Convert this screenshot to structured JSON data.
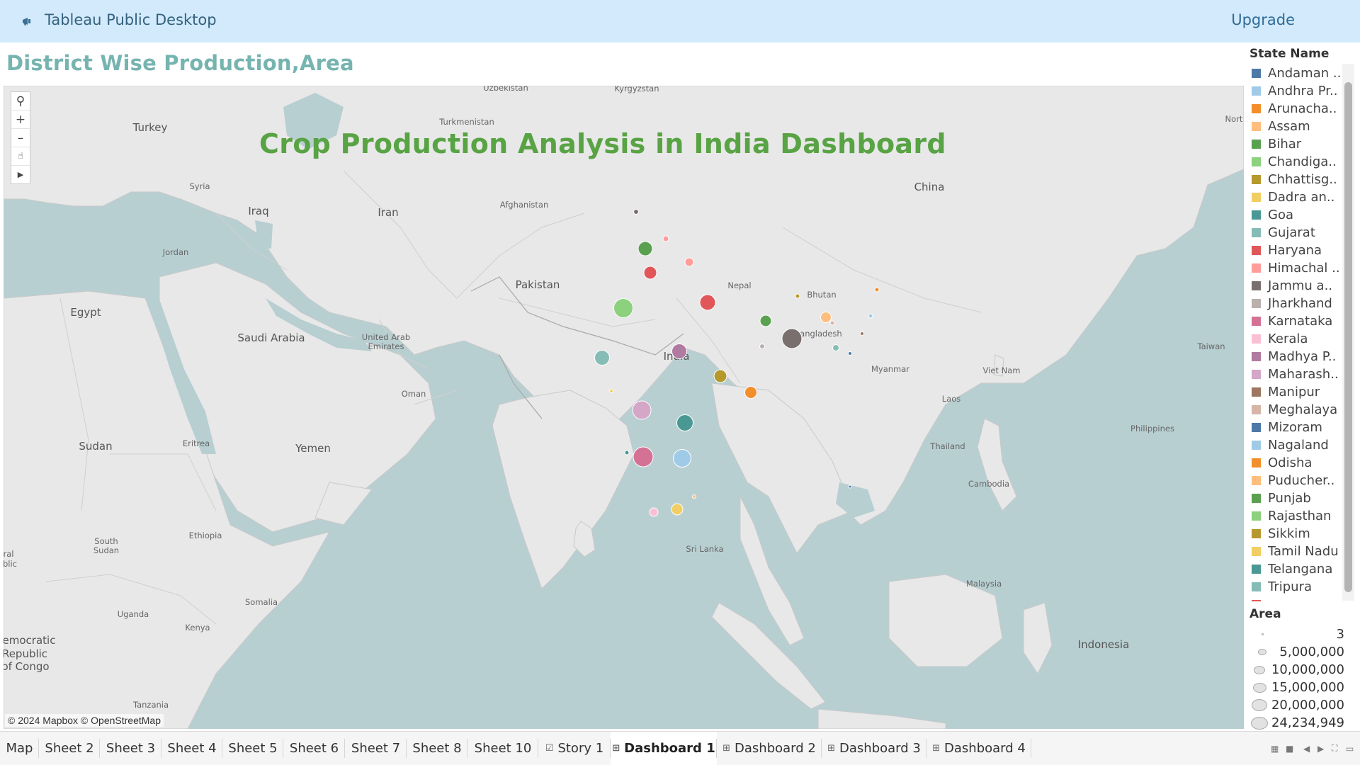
{
  "header": {
    "app_title": "Tableau Public Desktop",
    "upgrade_label": "Upgrade"
  },
  "sheet": {
    "title": "District Wise Production,Area",
    "dashboard_title": "Crop Production Analysis in India Dashboard"
  },
  "map": {
    "attribution": "© 2024 Mapbox © OpenStreetMap",
    "controls": [
      "search-icon",
      "zoom-in-icon",
      "zoom-out-icon",
      "lasso-select-icon",
      "expand-toolbar-icon"
    ],
    "labels": {
      "uzbekistan": "Uzbekistan",
      "kyrgyzstan": "Kyrgyzstan",
      "turkey": "Turkey",
      "turkmenistan": "Turkmenistan",
      "syria": "Syria",
      "iraq": "Iraq",
      "iran": "Iran",
      "afghanistan": "Afghanistan",
      "china": "China",
      "jordan": "Jordan",
      "pakistan": "Pakistan",
      "nepal": "Nepal",
      "bhutan": "Bhutan",
      "egypt": "Egypt",
      "saudi_arabia": "Saudi Arabia",
      "uae": "United Arab Emirates",
      "bangladesh": "Bangladesh",
      "india": "India",
      "myanmar": "Myanmar",
      "taiwan": "Taiwan",
      "oman": "Oman",
      "laos": "Laos",
      "viet_nam": "Viet Nam",
      "philippines": "Philippines",
      "sudan": "Sudan",
      "eritrea": "Eritrea",
      "yemen": "Yemen",
      "thailand": "Thailand",
      "cambodia": "Cambodia",
      "south_sudan": "South Sudan",
      "ethiopia": "Ethiopia",
      "sri_lanka": "Sri Lanka",
      "somalia": "Somalia",
      "uganda": "Uganda",
      "kenya": "Kenya",
      "malaysia": "Malaysia",
      "drc1": "emocratic",
      "drc2": "Republic",
      "drc3": "of Congo",
      "indonesia": "Indonesia",
      "tanzania": "Tanzania",
      "north": "Nort",
      "ral": "ral",
      "blic": "blic"
    }
  },
  "state_legend": {
    "title": "State Name",
    "items": [
      {
        "label": "Andaman ..",
        "color": "#4e79a7"
      },
      {
        "label": "Andhra Pr..",
        "color": "#a0cbe8"
      },
      {
        "label": "Arunacha..",
        "color": "#f28e2b"
      },
      {
        "label": "Assam",
        "color": "#ffbe7d"
      },
      {
        "label": "Bihar",
        "color": "#59a14f"
      },
      {
        "label": "Chandiga..",
        "color": "#8cd17d"
      },
      {
        "label": "Chhattisg..",
        "color": "#b6992d"
      },
      {
        "label": "Dadra an..",
        "color": "#f1ce63"
      },
      {
        "label": "Goa",
        "color": "#499894"
      },
      {
        "label": "Gujarat",
        "color": "#86bcb6"
      },
      {
        "label": "Haryana",
        "color": "#e15759"
      },
      {
        "label": "Himachal ..",
        "color": "#ff9d9a"
      },
      {
        "label": "Jammu a..",
        "color": "#79706e"
      },
      {
        "label": "Jharkhand",
        "color": "#bab0ac"
      },
      {
        "label": "Karnataka",
        "color": "#d37295"
      },
      {
        "label": "Kerala",
        "color": "#fabfd2"
      },
      {
        "label": "Madhya P..",
        "color": "#b07aa1"
      },
      {
        "label": "Maharash..",
        "color": "#d4a6c8"
      },
      {
        "label": "Manipur",
        "color": "#9d7660"
      },
      {
        "label": "Meghalaya",
        "color": "#d7b5a6"
      },
      {
        "label": "Mizoram",
        "color": "#4e79a7"
      },
      {
        "label": "Nagaland",
        "color": "#a0cbe8"
      },
      {
        "label": "Odisha",
        "color": "#f28e2b"
      },
      {
        "label": "Puducher..",
        "color": "#ffbe7d"
      },
      {
        "label": "Punjab",
        "color": "#59a14f"
      },
      {
        "label": "Rajasthan",
        "color": "#8cd17d"
      },
      {
        "label": "Sikkim",
        "color": "#b6992d"
      },
      {
        "label": "Tamil Nadu",
        "color": "#f1ce63"
      },
      {
        "label": "Telangana",
        "color": "#499894"
      },
      {
        "label": "Tripura",
        "color": "#86bcb6"
      },
      {
        "label": "",
        "color": "#e15759"
      }
    ]
  },
  "area_legend": {
    "title": "Area",
    "items": [
      "3",
      "5,000,000",
      "10,000,000",
      "15,000,000",
      "20,000,000",
      "24,234,949"
    ]
  },
  "tabs": [
    {
      "label": "Map",
      "type": "sheet"
    },
    {
      "label": "Sheet 2",
      "type": "sheet"
    },
    {
      "label": "Sheet 3",
      "type": "sheet"
    },
    {
      "label": "Sheet 4",
      "type": "sheet"
    },
    {
      "label": "Sheet 5",
      "type": "sheet"
    },
    {
      "label": "Sheet 6",
      "type": "sheet"
    },
    {
      "label": "Sheet 7",
      "type": "sheet"
    },
    {
      "label": "Sheet 8",
      "type": "sheet"
    },
    {
      "label": "Sheet 10",
      "type": "sheet"
    },
    {
      "label": "Story 1",
      "type": "story"
    },
    {
      "label": "Dashboard 1",
      "type": "dashboard",
      "active": true
    },
    {
      "label": "Dashboard 2",
      "type": "dashboard"
    },
    {
      "label": "Dashboard 3",
      "type": "dashboard"
    },
    {
      "label": "Dashboard 4",
      "type": "dashboard"
    }
  ],
  "tab_controls": [
    "show-sheet-sorter-icon",
    "show-filmstrip-icon",
    "scroll-tabs-left-icon",
    "scroll-tabs-right-icon",
    "fit-to-window-icon",
    "presentation-mode-icon"
  ]
}
